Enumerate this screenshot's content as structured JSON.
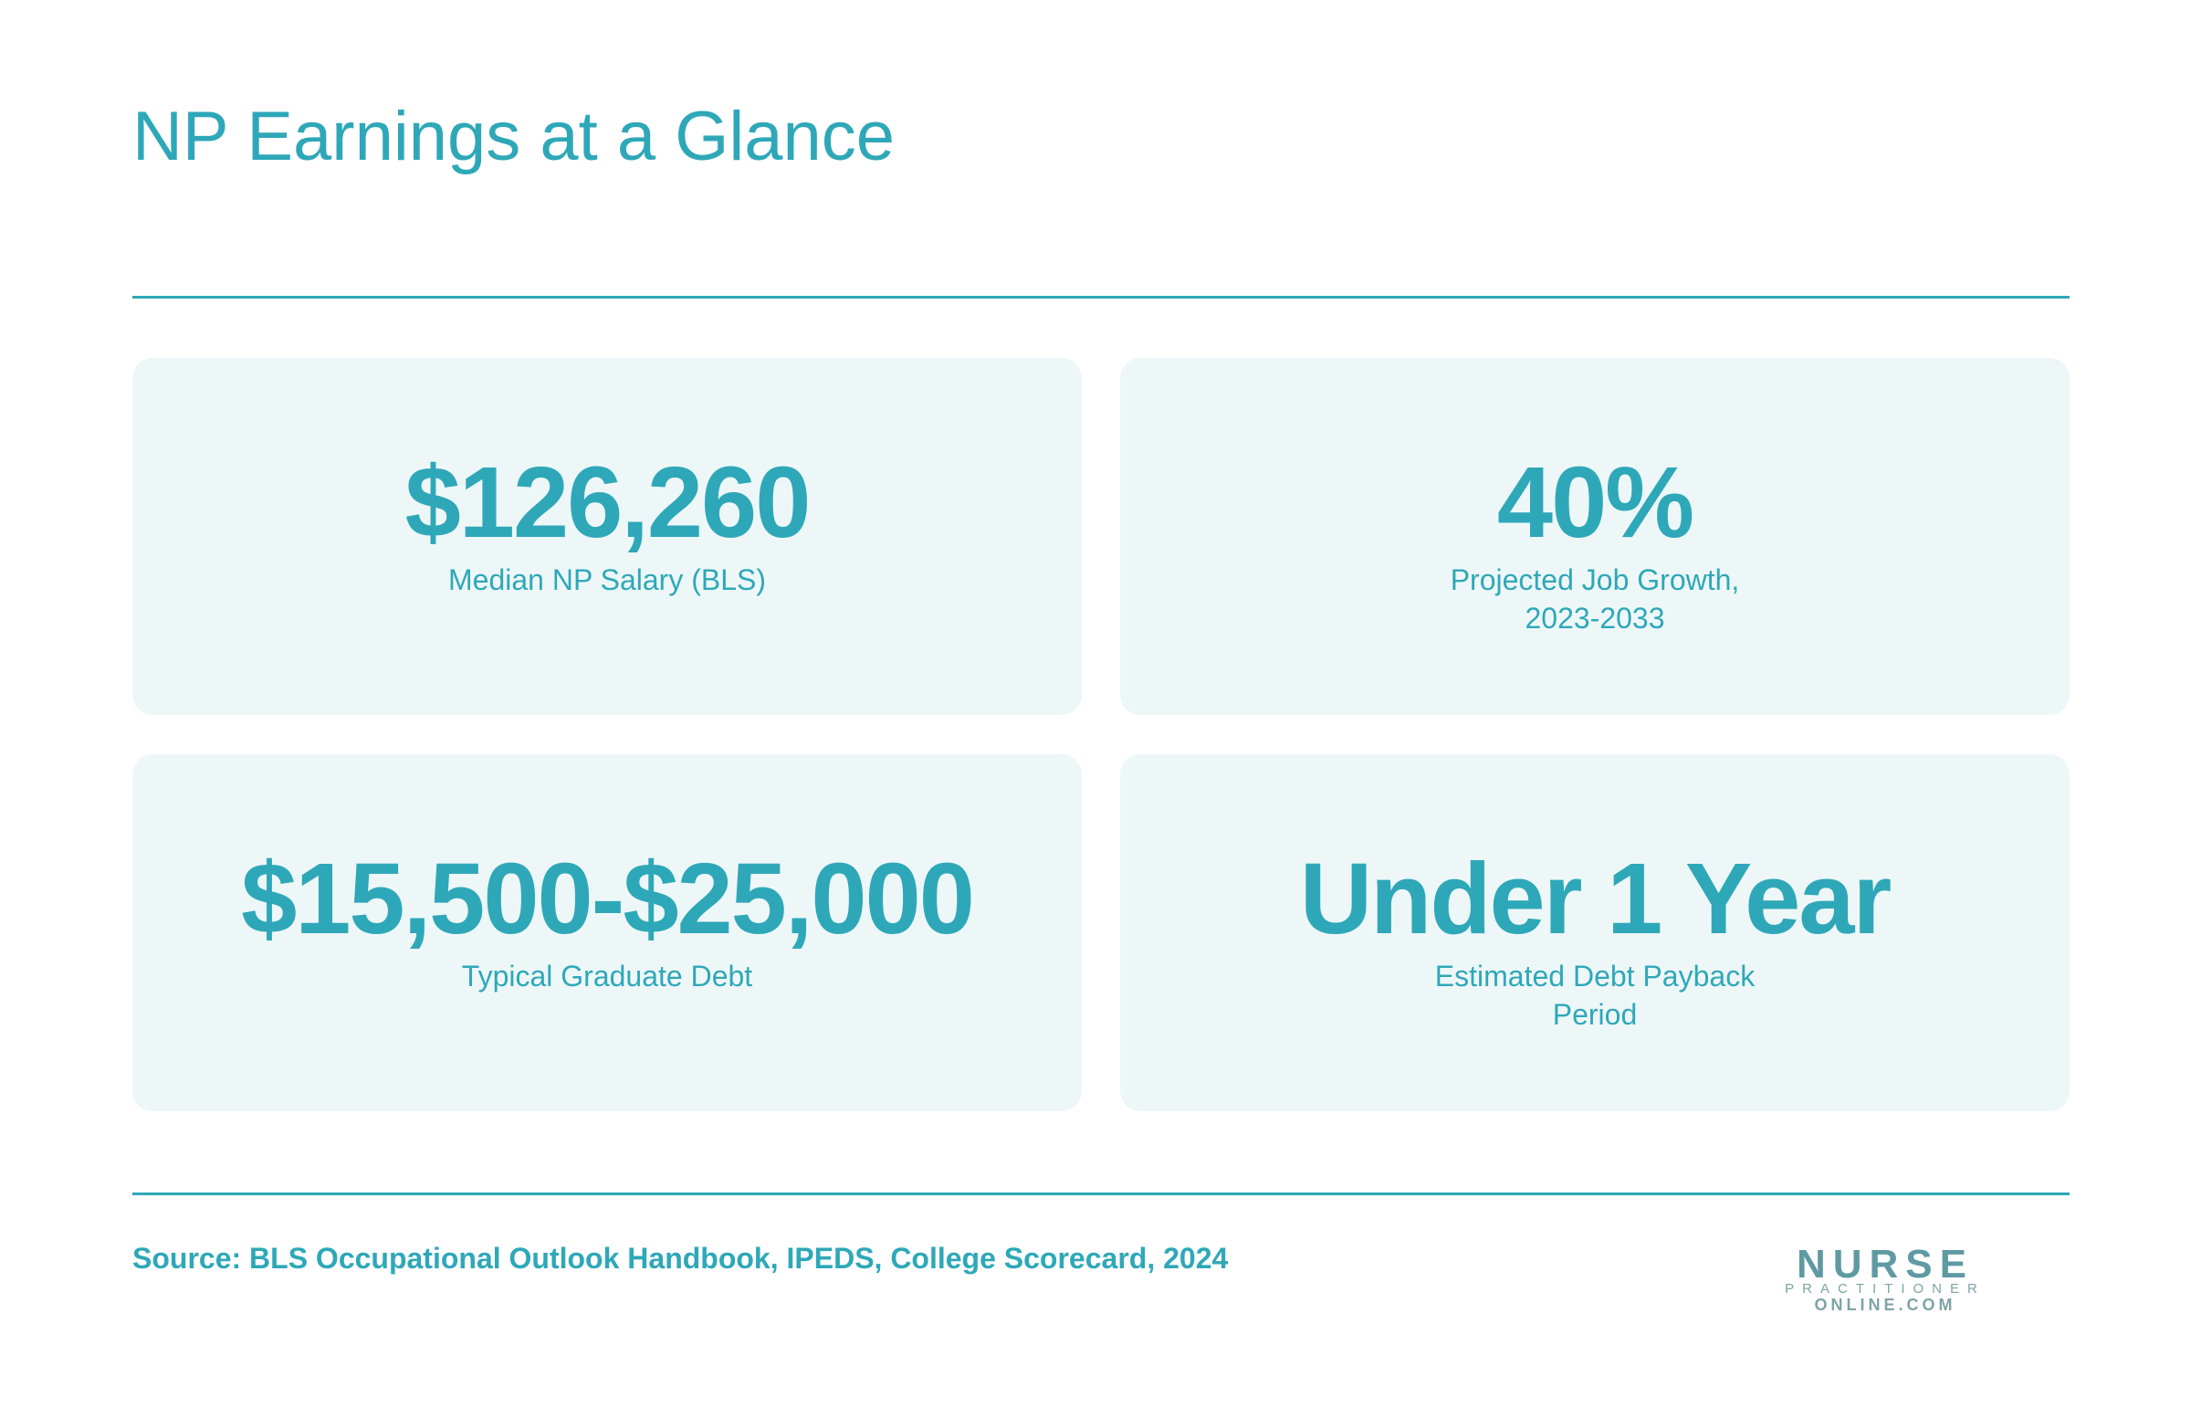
{
  "header": {
    "title": "NP Earnings at a Glance"
  },
  "stats": [
    {
      "value": "$126,260",
      "label": [
        "Median NP Salary (BLS)"
      ]
    },
    {
      "value": "40%",
      "label": [
        "Projected Job Growth,",
        "2023-2033"
      ]
    },
    {
      "value": "$15,500-$25,000",
      "label": [
        "Typical Graduate Debt"
      ]
    },
    {
      "value": "Under 1 Year",
      "label": [
        "Estimated Debt Payback",
        "Period"
      ]
    }
  ],
  "footer": {
    "source": "Source: BLS Occupational Outlook Handbook, IPEDS, College Scorecard, 2024",
    "logo": {
      "line1": "NURSE",
      "line2": "PRACTITIONER",
      "line3": "ONLINE.COM"
    }
  }
}
